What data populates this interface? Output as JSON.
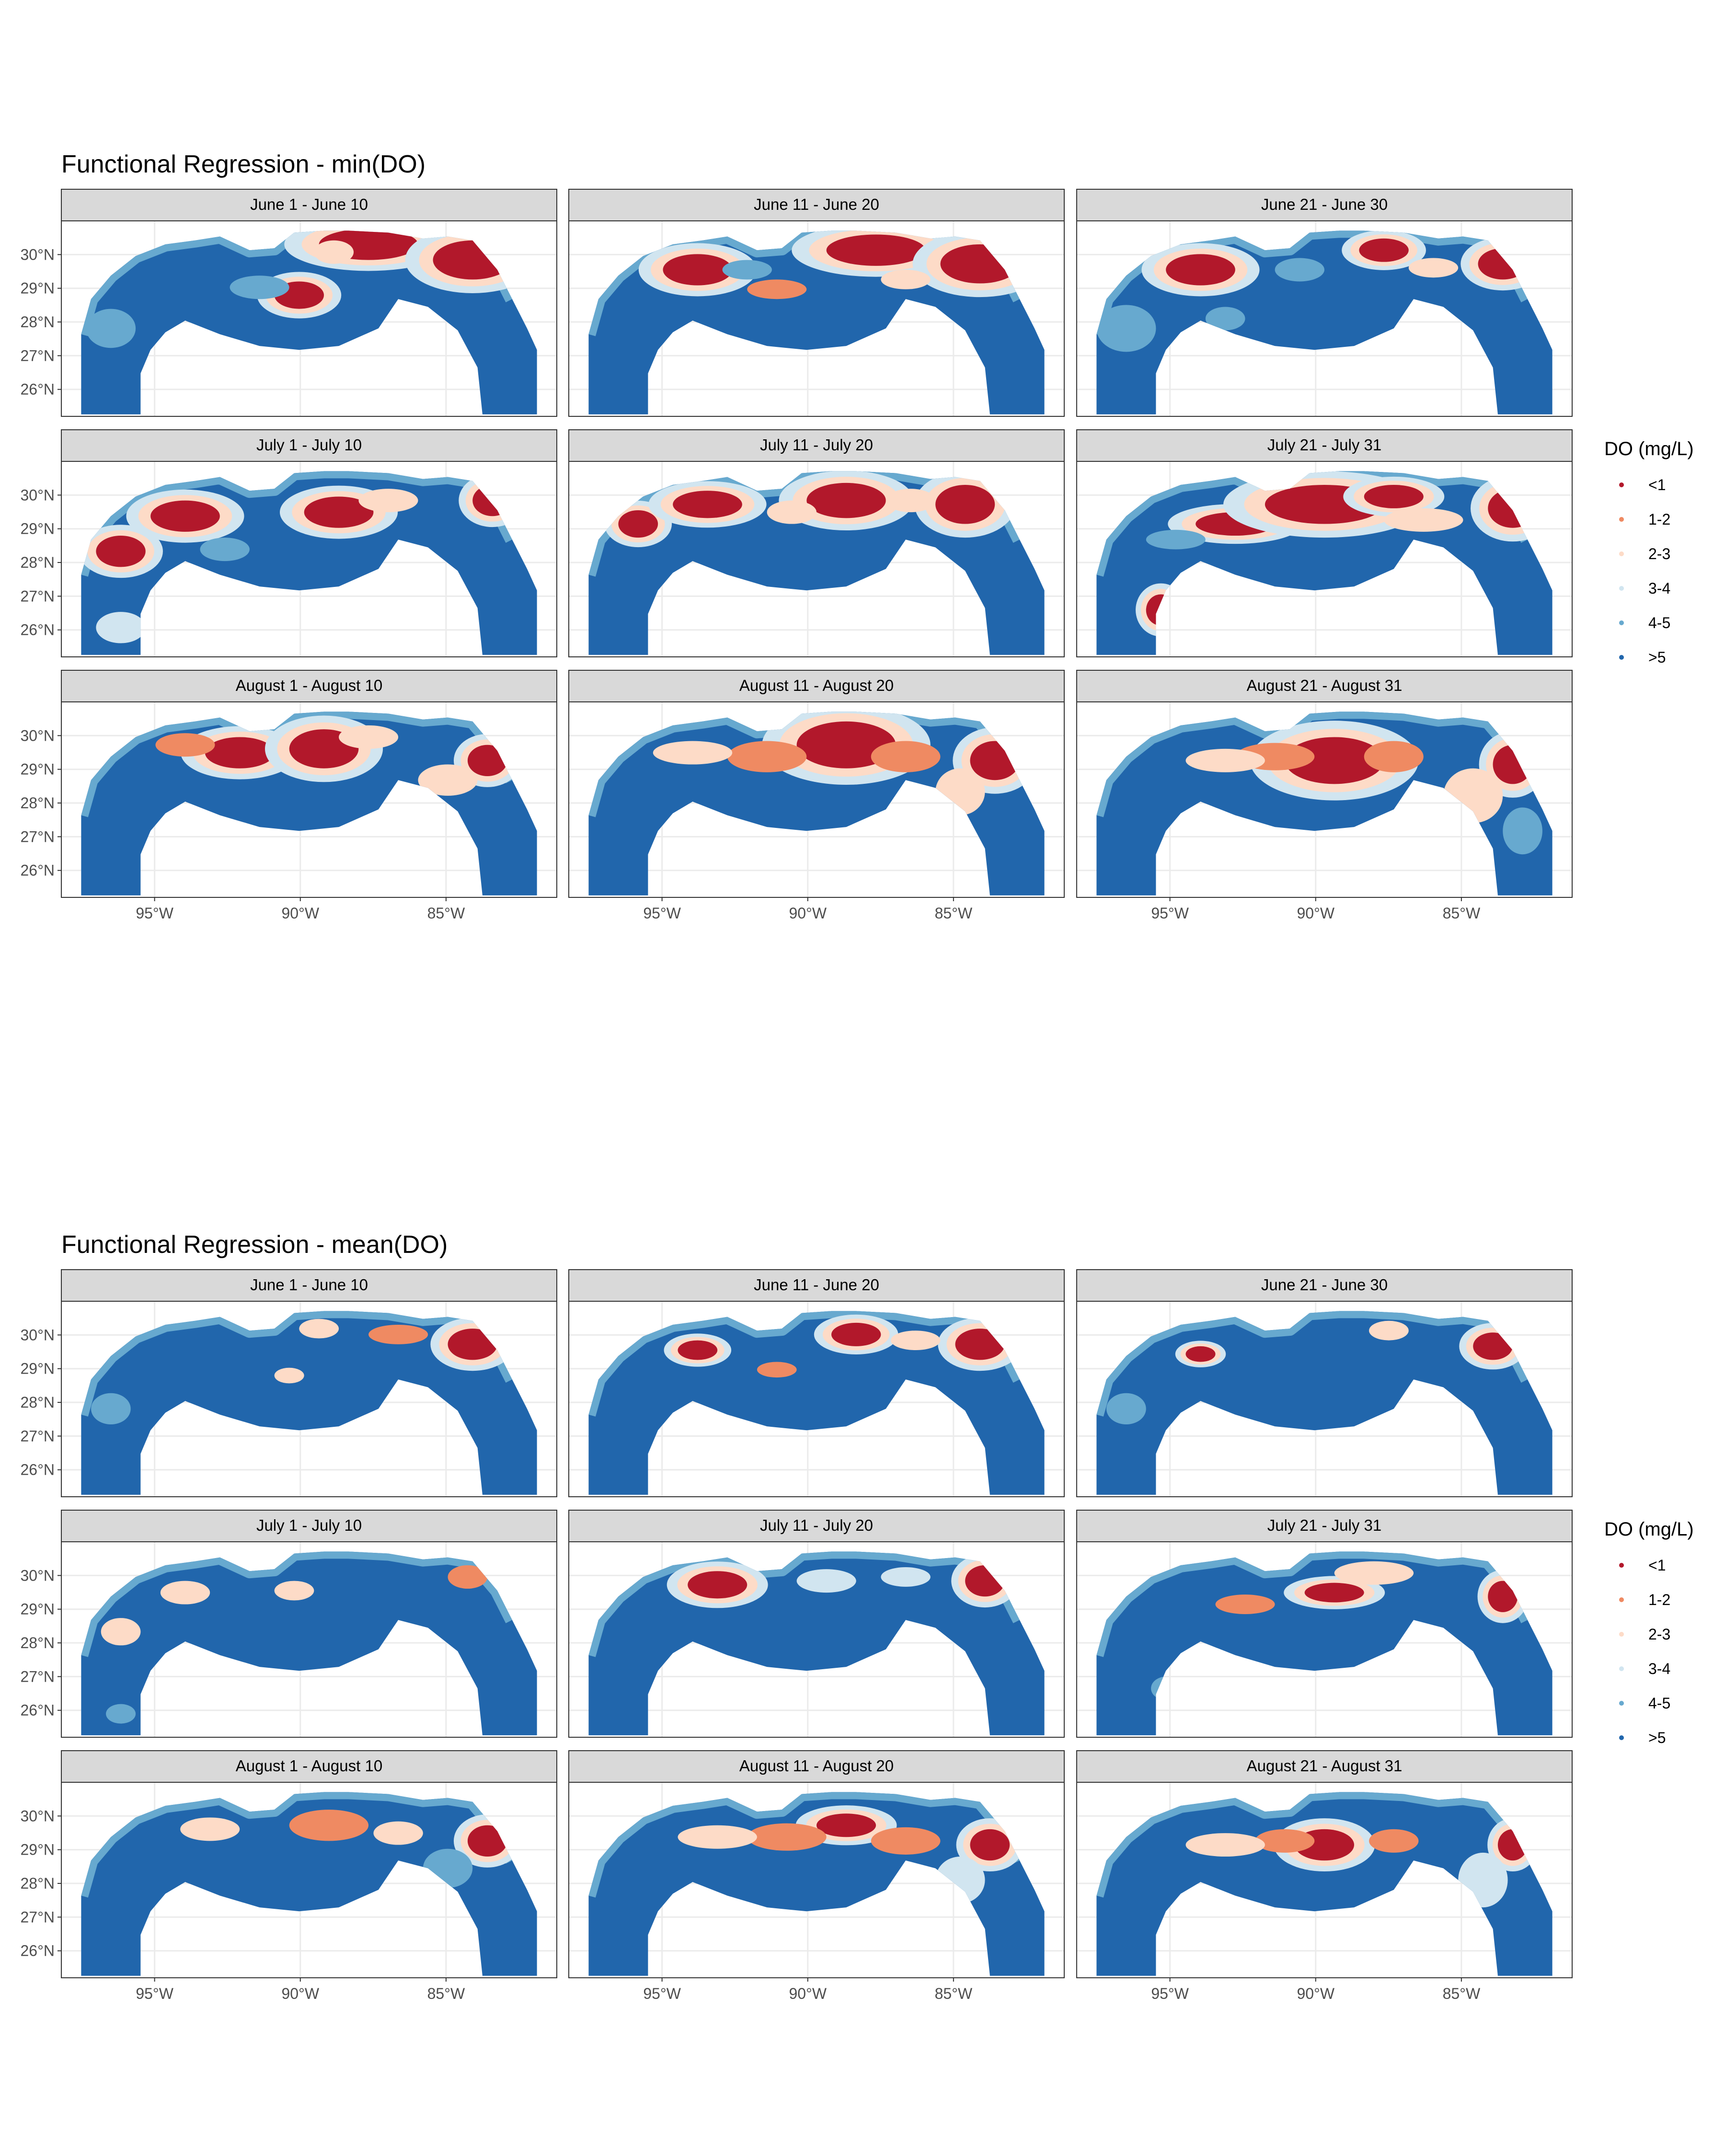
{
  "figures": [
    {
      "title": "Functional Regression - min(DO)",
      "panels": [
        {
          "label": "June 1 - June 10",
          "map": "do-map-min-jun1"
        },
        {
          "label": "June 11 - June 20",
          "map": "do-map-min-jun11"
        },
        {
          "label": "June 21 - June 30",
          "map": "do-map-min-jun21"
        },
        {
          "label": "July 1 - July 10",
          "map": "do-map-min-jul1"
        },
        {
          "label": "July 11 - July 20",
          "map": "do-map-min-jul11"
        },
        {
          "label": "July 21 - July 31",
          "map": "do-map-min-jul21"
        },
        {
          "label": "August 1 - August 10",
          "map": "do-map-min-aug1"
        },
        {
          "label": "August 11 - August 20",
          "map": "do-map-min-aug11"
        },
        {
          "label": "August 21 - August 31",
          "map": "do-map-min-aug21"
        }
      ]
    },
    {
      "title": "Functional Regression - mean(DO)",
      "panels": [
        {
          "label": "June 1 - June 10",
          "map": "do-map-mean-jun1"
        },
        {
          "label": "June 11 - June 20",
          "map": "do-map-mean-jun11"
        },
        {
          "label": "June 21 - June 30",
          "map": "do-map-mean-jun21"
        },
        {
          "label": "July 1 - July 10",
          "map": "do-map-mean-jul1"
        },
        {
          "label": "July 11 - July 20",
          "map": "do-map-mean-jul11"
        },
        {
          "label": "July 21 - July 31",
          "map": "do-map-mean-jul21"
        },
        {
          "label": "August 1 - August 10",
          "map": "do-map-mean-aug1"
        },
        {
          "label": "August 11 - August 20",
          "map": "do-map-mean-aug11"
        },
        {
          "label": "August 21 - August 31",
          "map": "do-map-mean-aug21"
        }
      ]
    }
  ],
  "axes": {
    "x_ticks": [
      "95°W",
      "90°W",
      "85°W"
    ],
    "x_tick_values": [
      -95,
      -90,
      -85
    ],
    "xlim": [
      -98.2,
      -81.2
    ],
    "y_ticks": [
      "30°N",
      "29°N",
      "28°N",
      "27°N",
      "26°N"
    ],
    "y_tick_values": [
      30,
      29,
      28,
      27,
      26
    ],
    "ylim": [
      25.2,
      31.0
    ]
  },
  "legend": {
    "title": "DO (mg/L)",
    "items": [
      {
        "label": "<1",
        "color": "#B2182B"
      },
      {
        "label": "1-2",
        "color": "#EF8A62"
      },
      {
        "label": "2-3",
        "color": "#FDDBC7"
      },
      {
        "label": "3-4",
        "color": "#D1E5F0"
      },
      {
        "label": "4-5",
        "color": "#67A9CF"
      },
      {
        "label": ">5",
        "color": "#2166AC"
      }
    ]
  },
  "colors": {
    "strip_fill": "#D9D9D9",
    "panel_border": "#333333",
    "grid": "#EBEBEB"
  }
}
